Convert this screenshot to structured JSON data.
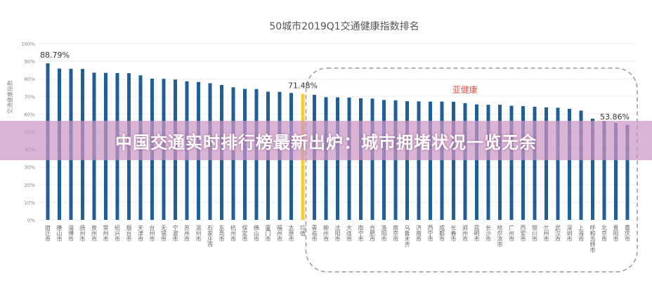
{
  "banner": {
    "headline": "中国交通实时排行榜最新出炉：城市拥堵状况一览无余"
  },
  "chart_data": {
    "type": "bar",
    "title": "50城市2019Q1交通健康指数排名",
    "xlabel": "",
    "ylabel": "交通健康指数",
    "ylim": [
      0,
      100
    ],
    "yticks": [
      "0%",
      "10%",
      "20%",
      "30%",
      "40%",
      "50%",
      "60%",
      "70%",
      "80%",
      "90%",
      "100%"
    ],
    "grid": true,
    "region_label": "亚健康",
    "colors": {
      "bar": "#1f5f99",
      "average": "#f2d22e",
      "region": "#d9534f",
      "border": "#999999"
    },
    "categories": [
      "宿迁市",
      "唐山市",
      "淄博市",
      "扬州市",
      "泉州市",
      "常州市",
      "绍兴市",
      "烟台市",
      "天津市",
      "台州市",
      "无锡市",
      "宁波市",
      "苏州市",
      "温州市",
      "石家庄市",
      "东莞市",
      "杭州市",
      "保定市",
      "佛山市",
      "厦门市",
      "福州市",
      "太原市",
      "均值",
      "青岛市",
      "柳州市",
      "沈阳市",
      "大连市",
      "南宁市",
      "合肥市",
      "洛阳市",
      "南京市",
      "乌鲁木齐",
      "济南市",
      "西宁市",
      "成都市",
      "长春市",
      "郑州市",
      "昆明市",
      "长沙市",
      "哈尔滨市",
      "广州市",
      "西安市",
      "银川市",
      "兰州市",
      "武汉市",
      "深圳市",
      "上海市",
      "呼和浩特市",
      "北京市",
      "贵阳市",
      "重庆市"
    ],
    "values": [
      88.79,
      85.8,
      85.7,
      85.6,
      83.5,
      83.4,
      83.3,
      83.2,
      82.0,
      80.1,
      80.0,
      79.6,
      78.6,
      78.2,
      77.5,
      76.5,
      75.2,
      74.3,
      74.2,
      72.7,
      72.6,
      72.0,
      71.48,
      70.9,
      69.6,
      69.5,
      69.4,
      69.0,
      68.8,
      68.0,
      67.8,
      67.3,
      67.2,
      67.1,
      67.1,
      67.0,
      66.2,
      65.5,
      65.3,
      65.3,
      64.7,
      64.5,
      64.2,
      63.8,
      63.6,
      63.0,
      62.0,
      57.4,
      56.0,
      55.0,
      53.86
    ],
    "average_index": 22,
    "data_labels": [
      {
        "index": 0,
        "text": "88.79%"
      },
      {
        "index": 22,
        "text": "71.48%"
      },
      {
        "index": 50,
        "text": "53.86%"
      }
    ]
  }
}
